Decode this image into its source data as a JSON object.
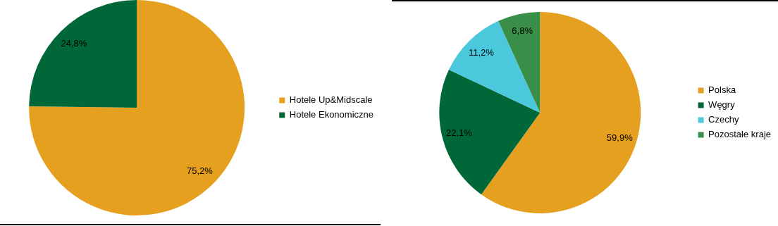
{
  "chart_data": [
    {
      "type": "pie",
      "categories": [
        "Hotele Up&Midscale",
        "Hotele Ekonomiczne"
      ],
      "values": [
        75.2,
        24.8
      ],
      "colors": [
        "#e6a020",
        "#006838"
      ],
      "value_labels": [
        "75,2%",
        "24,8%"
      ],
      "legend": "right"
    },
    {
      "type": "pie",
      "categories": [
        "Polska",
        "Węgry",
        "Czechy",
        "Pozostałe kraje"
      ],
      "values": [
        59.9,
        22.1,
        11.2,
        6.8
      ],
      "colors": [
        "#e6a020",
        "#006838",
        "#4bc8dc",
        "#3a8f48"
      ],
      "value_labels": [
        "59,9%",
        "22,1%",
        "11,2%",
        "6,8%"
      ],
      "legend": "right"
    }
  ]
}
